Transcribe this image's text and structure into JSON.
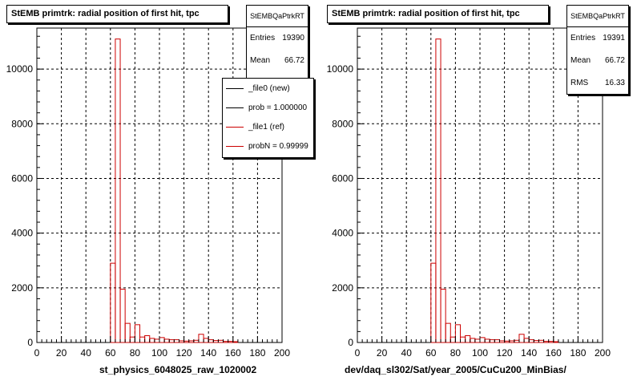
{
  "chart_data": [
    {
      "type": "bar",
      "title": "StEMB primtrk: radial position of first hit, tpc",
      "xlabel": "st_physics_6048025_raw_1020002",
      "ylabel": "",
      "xlim": [
        0,
        200
      ],
      "ylim": [
        0,
        11500
      ],
      "xticks": [
        0,
        20,
        40,
        60,
        80,
        100,
        120,
        140,
        160,
        180,
        200
      ],
      "yticks": [
        0,
        2000,
        4000,
        6000,
        8000,
        10000
      ],
      "grid": true,
      "stats": {
        "name": "StEMBQaPtrkRT",
        "entries_label": "Entries",
        "entries": "19390",
        "mean_label": "Mean",
        "mean": "66.72"
      },
      "legend": {
        "position": "top-right",
        "entries": [
          {
            "label": "_file0 (new)",
            "color": "#000000"
          },
          {
            "label": "prob = 1.000000",
            "color": "#000000"
          },
          {
            "label": "_file1 (ref)",
            "color": "#cc0000"
          },
          {
            "label": "probN = 0.99999",
            "color": "#cc0000"
          }
        ]
      },
      "series": [
        {
          "color": "#cc0000",
          "bin_width": 4,
          "x": [
            0,
            4,
            8,
            12,
            16,
            20,
            24,
            28,
            32,
            36,
            40,
            44,
            48,
            52,
            56,
            60,
            64,
            68,
            72,
            76,
            80,
            84,
            88,
            92,
            96,
            100,
            104,
            108,
            112,
            116,
            120,
            124,
            128,
            132,
            136,
            140,
            144,
            148,
            152,
            156,
            160,
            164,
            168,
            172,
            176,
            180,
            184,
            188,
            192,
            196
          ],
          "values": [
            0,
            0,
            0,
            0,
            0,
            0,
            0,
            0,
            0,
            0,
            0,
            0,
            0,
            0,
            0,
            2900,
            11100,
            1950,
            700,
            200,
            650,
            200,
            250,
            150,
            120,
            180,
            120,
            100,
            100,
            60,
            50,
            60,
            80,
            300,
            150,
            100,
            70,
            80,
            40,
            40,
            30,
            0,
            0,
            0,
            0,
            0,
            0,
            0,
            0,
            0
          ]
        }
      ]
    },
    {
      "type": "bar",
      "title": "StEMB primtrk: radial position of first hit, tpc",
      "xlabel": "dev/daq_sl302/Sat/year_2005/CuCu200_MinBias/",
      "ylabel": "",
      "xlim": [
        0,
        200
      ],
      "ylim": [
        0,
        11500
      ],
      "xticks": [
        0,
        20,
        40,
        60,
        80,
        100,
        120,
        140,
        160,
        180,
        200
      ],
      "yticks": [
        0,
        2000,
        4000,
        6000,
        8000,
        10000
      ],
      "grid": true,
      "stats": {
        "name": "StEMBQaPtrkRT",
        "entries_label": "Entries",
        "entries": "19391",
        "mean_label": "Mean",
        "mean": "66.72",
        "rms_label": "RMS",
        "rms": "16.33"
      },
      "series": [
        {
          "color": "#cc0000",
          "bin_width": 4,
          "x": [
            0,
            4,
            8,
            12,
            16,
            20,
            24,
            28,
            32,
            36,
            40,
            44,
            48,
            52,
            56,
            60,
            64,
            68,
            72,
            76,
            80,
            84,
            88,
            92,
            96,
            100,
            104,
            108,
            112,
            116,
            120,
            124,
            128,
            132,
            136,
            140,
            144,
            148,
            152,
            156,
            160,
            164,
            168,
            172,
            176,
            180,
            184,
            188,
            192,
            196
          ],
          "values": [
            0,
            0,
            0,
            0,
            0,
            0,
            0,
            0,
            0,
            0,
            0,
            0,
            0,
            0,
            0,
            2900,
            11100,
            1950,
            700,
            200,
            650,
            200,
            250,
            150,
            120,
            180,
            120,
            100,
            100,
            60,
            50,
            60,
            80,
            300,
            150,
            100,
            70,
            80,
            40,
            40,
            30,
            0,
            0,
            0,
            0,
            0,
            0,
            0,
            0,
            0
          ]
        }
      ]
    }
  ]
}
